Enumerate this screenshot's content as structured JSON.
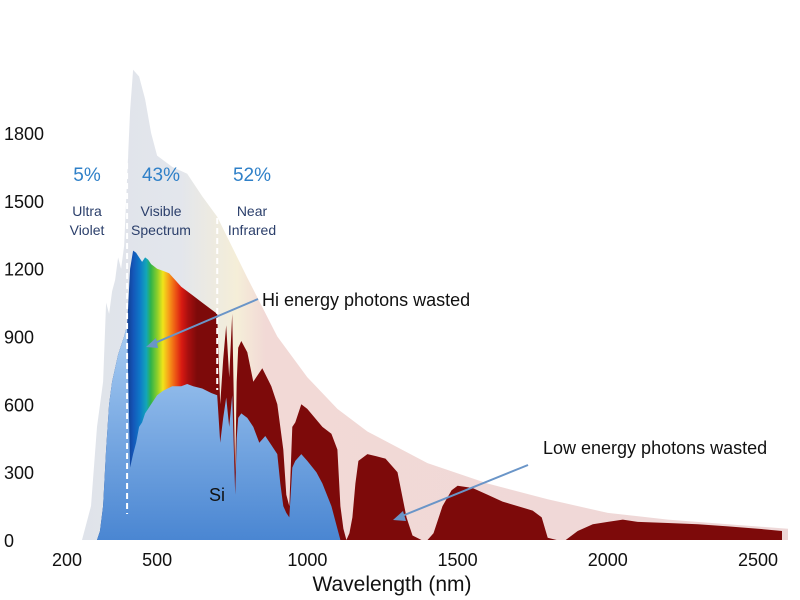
{
  "chart_data": {
    "type": "area",
    "xlabel": "Wavelength (nm)",
    "ylabel": "",
    "x_ticks": [
      200,
      500,
      1000,
      1500,
      2000,
      2500
    ],
    "y_ticks": [
      0,
      300,
      600,
      900,
      1200,
      1500,
      1800
    ],
    "xlim": [
      200,
      2600
    ],
    "ylim": [
      0,
      2100
    ],
    "grid": false,
    "colors": {
      "extraterrestrial": "#dfe3ea",
      "extraterrestrial_ir": "#eed8d8",
      "sea_level_ir": "#7d0a0a",
      "uv_band": "#0f2d6b",
      "si_absorbed": "#7fb3ea",
      "divider": "#ffffff",
      "arrow": "#6a95c8",
      "percent_text": "#2f80c8"
    },
    "bands": [
      {
        "name_lines": [
          "Ultra",
          "Violet"
        ],
        "percent": "5%"
      },
      {
        "name_lines": [
          "Visible",
          "Spectrum"
        ],
        "percent": "43%"
      },
      {
        "name_lines": [
          "Near",
          "Infrared"
        ],
        "percent": "52%"
      }
    ],
    "band_boundaries_nm": [
      400,
      700
    ],
    "annotations": {
      "hi_energy": "Hi energy photons wasted",
      "low_energy": "Low energy photons wasted",
      "si_label": "Si"
    },
    "series": [
      {
        "role": "extraterrestrial",
        "x": [
          250,
          280,
          300,
          320,
          330,
          340,
          350,
          360,
          370,
          380,
          390,
          400,
          410,
          420,
          440,
          460,
          480,
          500,
          550,
          600,
          650,
          700,
          800,
          900,
          1000,
          1100,
          1200,
          1400,
          1600,
          1800,
          2000,
          2200,
          2400,
          2600
        ],
        "y": [
          0,
          150,
          500,
          700,
          1050,
          1000,
          1100,
          1150,
          1250,
          1200,
          1300,
          1600,
          1900,
          2080,
          2050,
          1950,
          1800,
          1700,
          1650,
          1620,
          1520,
          1430,
          1160,
          900,
          720,
          580,
          480,
          340,
          250,
          180,
          120,
          90,
          70,
          50
        ]
      },
      {
        "role": "sea_level",
        "x": [
          300,
          310,
          320,
          330,
          340,
          350,
          360,
          370,
          380,
          390,
          400,
          410,
          420,
          430,
          440,
          450,
          460,
          470,
          480,
          490,
          500,
          520,
          540,
          560,
          580,
          600,
          620,
          650,
          680,
          700,
          710,
          720,
          730,
          740,
          750,
          760,
          765,
          770,
          780,
          800,
          820,
          850,
          880,
          900,
          920,
          930,
          940,
          950,
          960,
          980,
          1000,
          1050,
          1080,
          1100,
          1110,
          1120,
          1130,
          1140,
          1150,
          1160,
          1170,
          1200,
          1230,
          1260,
          1300,
          1330,
          1350,
          1380,
          1400,
          1420,
          1450,
          1480,
          1500,
          1550,
          1600,
          1650,
          1700,
          1750,
          1780,
          1800,
          1830,
          1860,
          1900,
          1950,
          2000,
          2050,
          2100,
          2200,
          2300,
          2400,
          2500,
          2580
        ],
        "y": [
          0,
          40,
          150,
          400,
          600,
          700,
          760,
          820,
          860,
          900,
          950,
          1200,
          1280,
          1270,
          1250,
          1230,
          1250,
          1240,
          1220,
          1210,
          1200,
          1190,
          1180,
          1150,
          1120,
          1100,
          1080,
          1050,
          1020,
          1000,
          600,
          800,
          950,
          720,
          1000,
          300,
          700,
          850,
          880,
          830,
          700,
          760,
          680,
          600,
          400,
          200,
          150,
          500,
          520,
          600,
          580,
          500,
          470,
          400,
          150,
          50,
          0,
          30,
          100,
          250,
          350,
          380,
          370,
          360,
          300,
          100,
          20,
          0,
          0,
          30,
          150,
          220,
          240,
          230,
          200,
          170,
          150,
          130,
          100,
          10,
          0,
          0,
          40,
          70,
          80,
          90,
          80,
          75,
          70,
          60,
          50,
          40
        ]
      },
      {
        "role": "si_absorbed",
        "x": [
          300,
          310,
          320,
          330,
          340,
          350,
          360,
          370,
          380,
          390,
          400,
          410,
          420,
          430,
          440,
          450,
          460,
          470,
          480,
          500,
          520,
          550,
          580,
          600,
          620,
          650,
          680,
          700,
          710,
          720,
          730,
          740,
          750,
          760,
          765,
          770,
          780,
          800,
          820,
          840,
          860,
          880,
          900,
          910,
          920,
          930,
          940,
          950,
          960,
          980,
          1000,
          1030,
          1050,
          1080,
          1100,
          1110
        ],
        "y": [
          0,
          40,
          150,
          400,
          600,
          700,
          760,
          820,
          860,
          900,
          950,
          320,
          380,
          430,
          500,
          520,
          560,
          580,
          600,
          640,
          660,
          680,
          680,
          690,
          680,
          670,
          650,
          640,
          430,
          540,
          630,
          500,
          640,
          200,
          450,
          540,
          560,
          540,
          500,
          430,
          460,
          420,
          380,
          250,
          150,
          120,
          100,
          320,
          350,
          380,
          350,
          300,
          250,
          150,
          50,
          0
        ]
      }
    ]
  }
}
